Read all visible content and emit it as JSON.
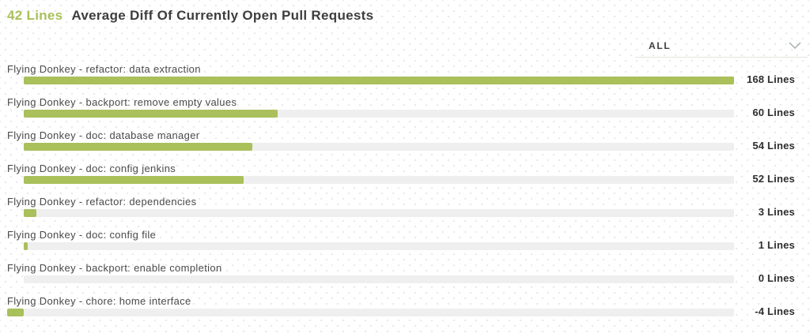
{
  "colors": {
    "accent": "#a9c05b",
    "track": "#efefef",
    "title": "#3d3d3d",
    "label": "#4a4a4a",
    "value": "#2e2e2e",
    "underline": "#e3e3de",
    "chevron": "#a8adad",
    "dot": "#e9e9e9"
  },
  "header": {
    "stat": "42 Lines",
    "title": "Average Diff Of Currently Open Pull Requests"
  },
  "filter": {
    "selected": "ALL"
  },
  "chart_data": {
    "type": "bar",
    "orientation": "horizontal",
    "title": "Average Diff Of Currently Open Pull Requests",
    "summary_value": "42 Lines",
    "unit": "Lines",
    "xlim": [
      0,
      168
    ],
    "max_value": 168,
    "grid": false,
    "legend": false,
    "categories": [
      "Flying Donkey - refactor: data extraction",
      "Flying Donkey - backport: remove empty values",
      "Flying Donkey - doc: database manager",
      "Flying Donkey - doc: config jenkins",
      "Flying Donkey - refactor: dependencies",
      "Flying Donkey - doc: config file",
      "Flying Donkey - backport: enable completion",
      "Flying Donkey - chore: home interface"
    ],
    "values": [
      168,
      60,
      54,
      52,
      3,
      1,
      0,
      -4
    ],
    "value_labels": [
      "168 Lines",
      "60 Lines",
      "54 Lines",
      "52 Lines",
      "3 Lines",
      "1 Lines",
      "0 Lines",
      "-4 Lines"
    ]
  }
}
